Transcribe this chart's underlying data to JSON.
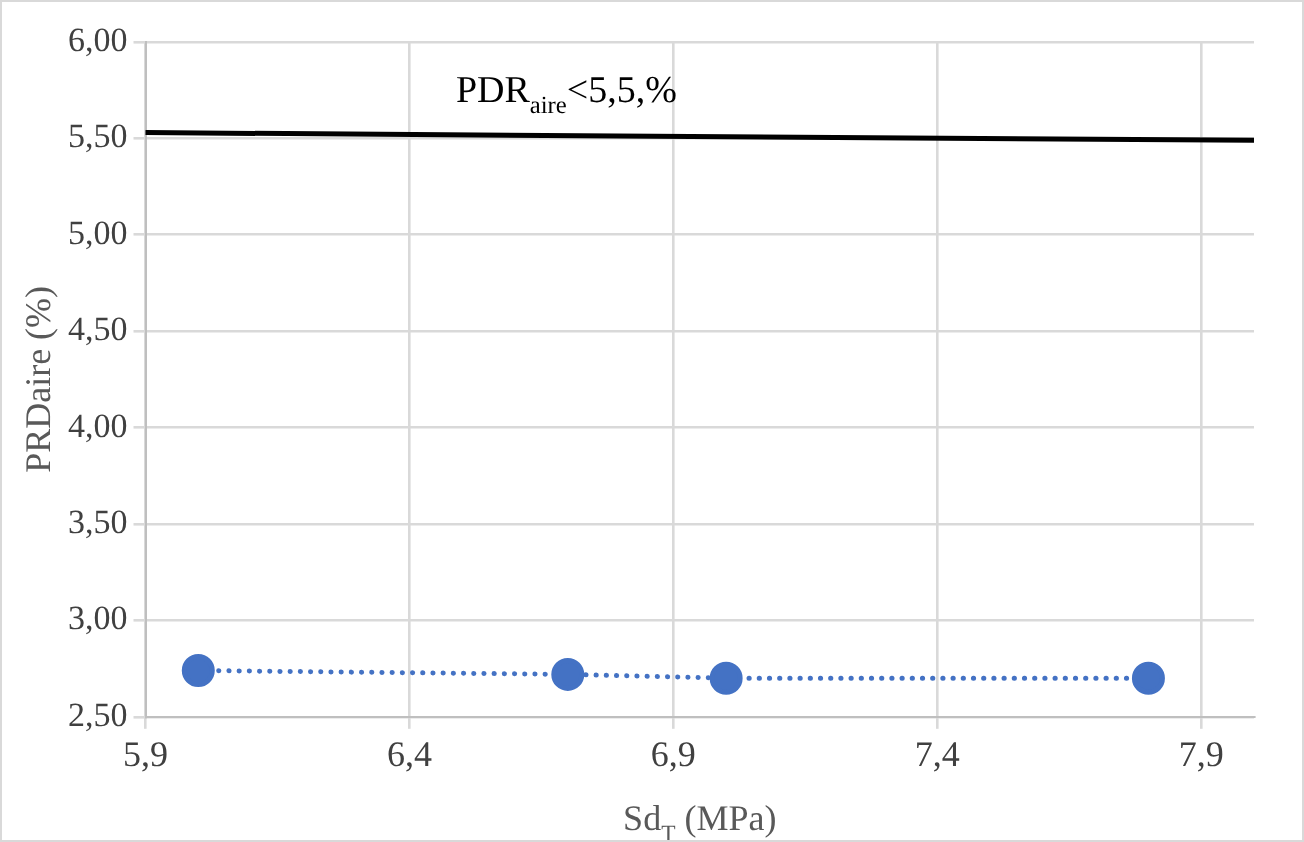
{
  "chart_data": {
    "type": "line",
    "xlabel": "Sd$_{T}$ (MPa)",
    "ylabel": "PRDaire (%)",
    "series": [
      {
        "color": "#4472c4",
        "marker": "circle",
        "line_style": "dotted",
        "x": [
          6.0,
          6.7,
          7.0,
          7.8
        ],
        "values": [
          2.74,
          2.72,
          2.7,
          2.7
        ]
      },
      {
        "color": "#000000",
        "marker": "none",
        "line_style": "solid",
        "x": [
          5.9,
          8.0
        ],
        "values": [
          5.53,
          5.49
        ]
      }
    ],
    "annotations": [
      "PDR$_{aire}$<5,5,%"
    ],
    "xlim": [
      5.9,
      8.0
    ],
    "ylim": [
      2.5,
      6.0
    ],
    "xticks": [
      {
        "value": 5.9,
        "label": "5,9"
      },
      {
        "value": 6.4,
        "label": "6,4"
      },
      {
        "value": 6.9,
        "label": "6,9"
      },
      {
        "value": 7.4,
        "label": "7,4"
      },
      {
        "value": 7.9,
        "label": "7,9"
      }
    ],
    "yticks": [
      {
        "value": 2.5,
        "label": "2,50"
      },
      {
        "value": 3,
        "label": "3,00"
      },
      {
        "value": 3.5,
        "label": "3,50"
      },
      {
        "value": 4,
        "label": "4,00"
      },
      {
        "value": 4.5,
        "label": "4,50"
      },
      {
        "value": 5,
        "label": "5,00"
      },
      {
        "value": 5.5,
        "label": "5,50"
      },
      {
        "value": 6,
        "label": "6,00"
      }
    ],
    "grid": true,
    "legend": false
  }
}
